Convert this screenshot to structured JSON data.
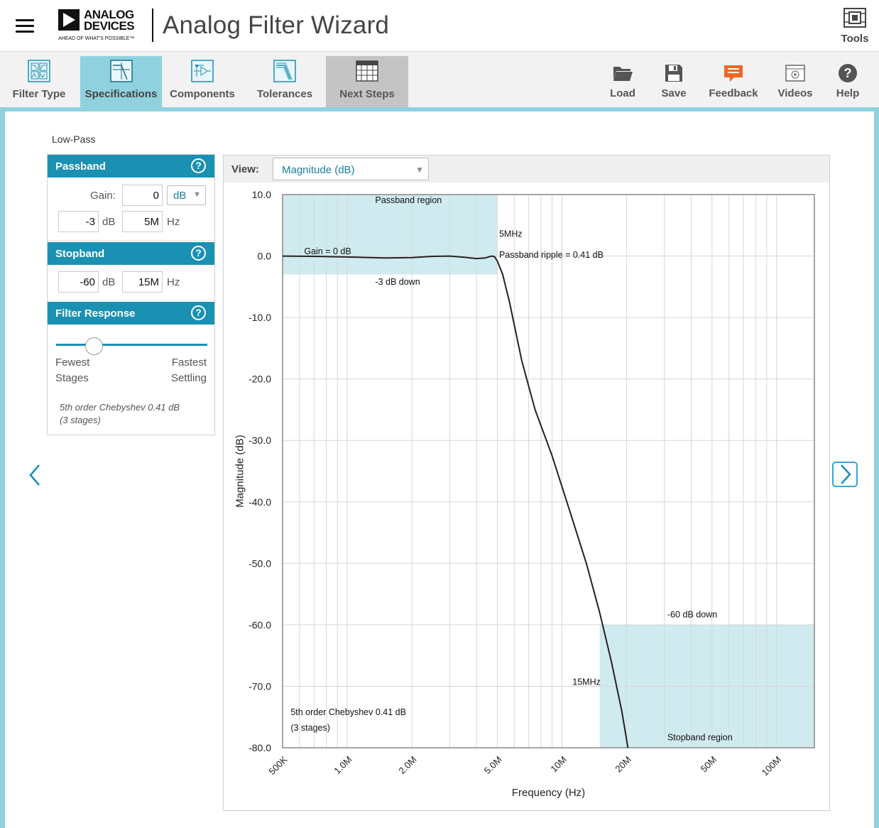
{
  "app": {
    "title": "Analog Filter Wizard",
    "logo_name": "ANALOG\nDEVICES",
    "logo_tagline": "AHEAD OF WHAT'S POSSIBLE™",
    "tools_label": "Tools"
  },
  "toolbar": {
    "tabs": [
      {
        "label": "Filter Type",
        "icon": "filter-type-icon",
        "state": "normal"
      },
      {
        "label": "Specifications",
        "icon": "specifications-icon",
        "state": "active"
      },
      {
        "label": "Components",
        "icon": "components-icon",
        "state": "normal"
      },
      {
        "label": "Tolerances",
        "icon": "tolerances-icon",
        "state": "normal"
      },
      {
        "label": "Next Steps",
        "icon": "next-steps-icon",
        "state": "disabled"
      }
    ],
    "actions": [
      {
        "label": "Load",
        "icon": "folder-icon"
      },
      {
        "label": "Save",
        "icon": "floppy-disk-icon"
      },
      {
        "label": "Feedback",
        "icon": "feedback-icon",
        "color": "#f26522"
      },
      {
        "label": "Videos",
        "icon": "video-icon"
      },
      {
        "label": "Help",
        "icon": "help-icon"
      }
    ]
  },
  "filter_kind": "Low-Pass",
  "passband": {
    "title": "Passband",
    "gain_label": "Gain:",
    "gain_value": "0",
    "gain_unit": "dB",
    "atten_value": "-3",
    "atten_unit": "dB",
    "freq_value": "5M",
    "freq_unit": "Hz"
  },
  "stopband": {
    "title": "Stopband",
    "atten_value": "-60",
    "atten_unit": "dB",
    "freq_value": "15M",
    "freq_unit": "Hz"
  },
  "filter_response": {
    "title": "Filter Response",
    "left_label_1": "Fewest",
    "left_label_2": "Stages",
    "right_label_1": "Fastest",
    "right_label_2": "Settling",
    "slider_position": 0.25,
    "note_line1": "5th order Chebyshev 0.41 dB",
    "note_line2": "(3 stages)"
  },
  "view": {
    "label": "View:",
    "selected": "Magnitude (dB)"
  },
  "colors": {
    "accent": "#8fd1de",
    "header_blue": "#1a90b3",
    "region_fill": "#d0ebf0",
    "feedback": "#f26522"
  },
  "chart_data": {
    "type": "line",
    "xlabel": "Frequency (Hz)",
    "ylabel": "Magnitude (dB)",
    "x_scale": "log",
    "xlim": [
      500000,
      150000000
    ],
    "ylim": [
      -80,
      10
    ],
    "yticks": [
      10,
      0,
      -10,
      -20,
      -30,
      -40,
      -50,
      -60,
      -70,
      -80
    ],
    "ytick_labels": [
      "10.0",
      "0.0",
      "-10.0",
      "-20.0",
      "-30.0",
      "-40.0",
      "-50.0",
      "-60.0",
      "-70.0",
      "-80.0"
    ],
    "xticks": [
      500000,
      1000000,
      2000000,
      5000000,
      10000000,
      20000000,
      50000000,
      100000000
    ],
    "xtick_labels": [
      "500K",
      "1.0M",
      "2.0M",
      "5.0M",
      "10M",
      "20M",
      "50M",
      "100M"
    ],
    "grid": true,
    "series": [
      {
        "x": [
          500000,
          700000,
          1000000,
          1500000,
          2000000,
          2500000,
          3000000,
          3500000,
          4000000,
          4400000,
          4700000,
          4850000,
          5000000,
          5300000,
          5700000,
          6500000,
          7500000,
          9000000,
          11000000,
          13000000,
          15000000,
          17000000,
          19000000,
          20300000
        ],
        "y": [
          0.0,
          -0.05,
          -0.15,
          -0.3,
          -0.25,
          -0.05,
          0.0,
          -0.2,
          -0.41,
          -0.3,
          0.0,
          -0.1,
          -0.8,
          -3.0,
          -7.5,
          -17,
          -25,
          -32.5,
          -42,
          -50,
          -58,
          -66,
          -74,
          -80
        ]
      }
    ],
    "regions": [
      {
        "label": "Passband region",
        "x": [
          500000,
          5000000
        ],
        "y": [
          -3,
          10
        ]
      },
      {
        "label": "Stopband region",
        "x": [
          15000000,
          150000000
        ],
        "y": [
          -80,
          -60
        ]
      }
    ],
    "annotations": [
      {
        "text": "Passband region"
      },
      {
        "text": "5MHz"
      },
      {
        "text": "Gain = 0 dB"
      },
      {
        "text": "Passband ripple = 0.41 dB"
      },
      {
        "text": "-3 dB down"
      },
      {
        "text": "-60 dB down"
      },
      {
        "text": "15MHz"
      },
      {
        "text": "Stopband region"
      },
      {
        "text": "5th order Chebyshev 0.41 dB"
      },
      {
        "text": "(3 stages)"
      }
    ]
  }
}
